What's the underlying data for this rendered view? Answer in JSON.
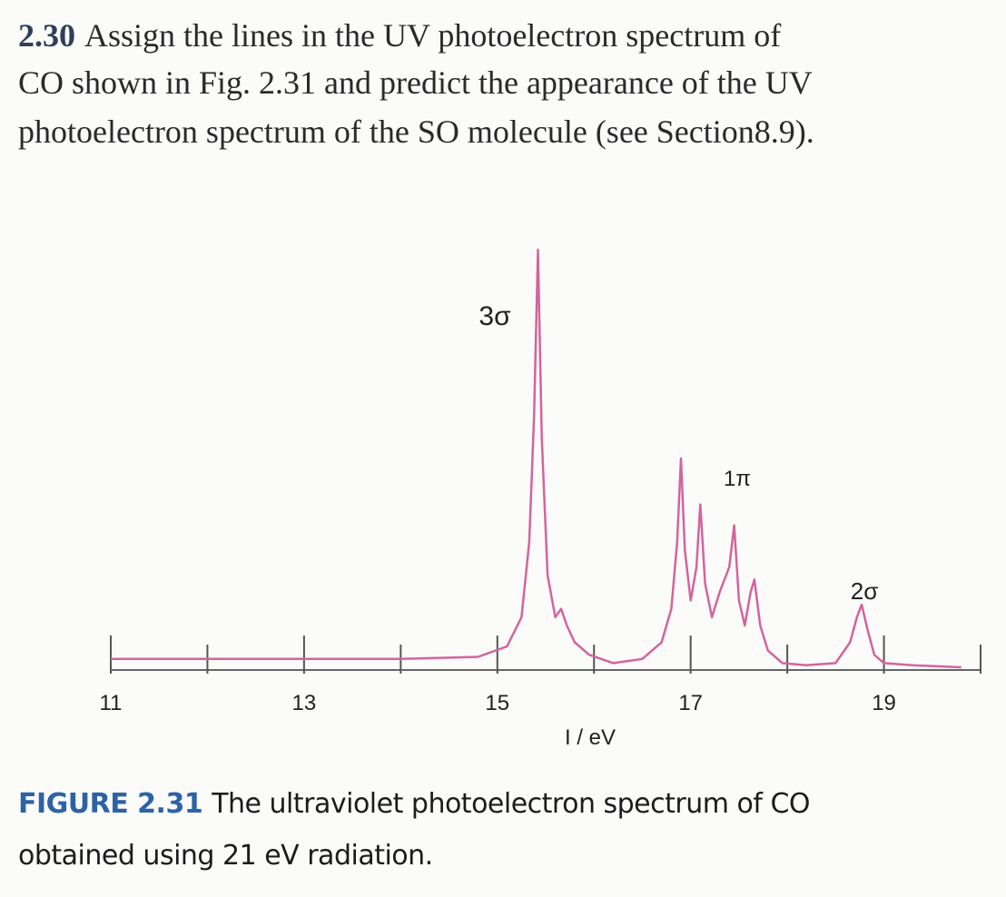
{
  "problem": {
    "number": "2.30",
    "lines": [
      "Assign the lines in the UV photoelectron spectrum of",
      "CO shown in Fig. 2.31 and predict the appearance of the UV",
      "photoelectron spectrum of the SO molecule (see Section8.9)."
    ]
  },
  "chart_data": {
    "type": "line",
    "x_label": "I / eV",
    "color": "#d4649c",
    "annotations": [
      "3σ",
      "1π",
      "2σ"
    ],
    "xlim": [
      11,
      20
    ],
    "xticks": [
      11,
      13,
      15,
      17,
      19
    ],
    "minor_xticks": [
      12,
      14,
      16,
      18,
      20
    ],
    "ylim": [
      0,
      100
    ],
    "x": [
      11,
      12,
      13,
      14,
      14.8,
      15.1,
      15.25,
      15.33,
      15.38,
      15.42,
      15.46,
      15.52,
      15.6,
      15.66,
      15.72,
      15.8,
      15.95,
      16.2,
      16.5,
      16.7,
      16.8,
      16.86,
      16.9,
      16.94,
      17.0,
      17.06,
      17.1,
      17.15,
      17.22,
      17.3,
      17.4,
      17.45,
      17.5,
      17.56,
      17.62,
      17.66,
      17.72,
      17.8,
      17.95,
      18.2,
      18.5,
      18.65,
      18.72,
      18.77,
      18.83,
      18.9,
      19.0,
      19.3,
      19.8
    ],
    "values": [
      2,
      2,
      2,
      2,
      2.5,
      5,
      12,
      30,
      60,
      100,
      55,
      22,
      12,
      14,
      10,
      6,
      3,
      1,
      2,
      6,
      14,
      30,
      50,
      28,
      16,
      24,
      39,
      20,
      12,
      18,
      24,
      34,
      16,
      10,
      18,
      21,
      10,
      4,
      1,
      0.5,
      1,
      6,
      12,
      15,
      9,
      3,
      1,
      0.5,
      0
    ]
  },
  "caption": {
    "label": "FIGURE 2.31",
    "lines": [
      "The ultraviolet photoelectron spectrum of CO",
      "obtained using 21 eV radiation."
    ]
  }
}
